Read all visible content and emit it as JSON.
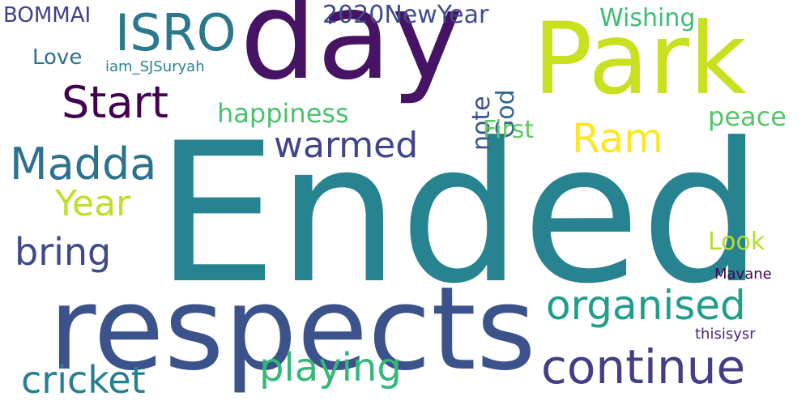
{
  "word_cloud": {
    "background": "#ffffff",
    "words": [
      {
        "id": "ended",
        "text": "Ended",
        "color": "#26838f"
      },
      {
        "id": "respects",
        "text": "respects",
        "color": "#3b528b"
      },
      {
        "id": "day",
        "text": "day",
        "color": "#471365"
      },
      {
        "id": "park",
        "text": "Park",
        "color": "#c8e020"
      },
      {
        "id": "isro",
        "text": "ISRO",
        "color": "#2a788e"
      },
      {
        "id": "start",
        "text": "Start",
        "color": "#440154"
      },
      {
        "id": "madda",
        "text": "Madda",
        "color": "#2c728e"
      },
      {
        "id": "warmed",
        "text": "warmed",
        "color": "#414487"
      },
      {
        "id": "ram",
        "text": "Ram",
        "color": "#fde725"
      },
      {
        "id": "year",
        "text": "Year",
        "color": "#bddf26"
      },
      {
        "id": "bring",
        "text": "bring",
        "color": "#3e4a89"
      },
      {
        "id": "organised",
        "text": "organised",
        "color": "#1f9e89"
      },
      {
        "id": "continue",
        "text": "continue",
        "color": "#433e85"
      },
      {
        "id": "playing",
        "text": "playing",
        "color": "#35b779"
      },
      {
        "id": "cricket",
        "text": "cricket",
        "color": "#277f8e"
      },
      {
        "id": "2020newyear",
        "text": "2020NewYear",
        "color": "#3e4c8a"
      },
      {
        "id": "bommai",
        "text": "BOMMAI",
        "color": "#424086"
      },
      {
        "id": "love",
        "text": "Love",
        "color": "#2d708e"
      },
      {
        "id": "iam",
        "text": "iam_SJSuryah",
        "color": "#25858e"
      },
      {
        "id": "note",
        "text": "note",
        "color": "#3a538b"
      },
      {
        "id": "god",
        "text": "God",
        "color": "#31688e"
      },
      {
        "id": "happiness",
        "text": "happiness",
        "color": "#4ac16d"
      },
      {
        "id": "wishing",
        "text": "Wishing",
        "color": "#3dbc74"
      },
      {
        "id": "peace",
        "text": "peace",
        "color": "#52c569"
      },
      {
        "id": "first",
        "text": "First",
        "color": "#5ec962"
      },
      {
        "id": "look",
        "text": "Look",
        "color": "#b5de2b"
      },
      {
        "id": "mavane",
        "text": "Mavane",
        "color": "#440154"
      },
      {
        "id": "thisisysr",
        "text": "thisisysr",
        "color": "#482878"
      }
    ]
  }
}
